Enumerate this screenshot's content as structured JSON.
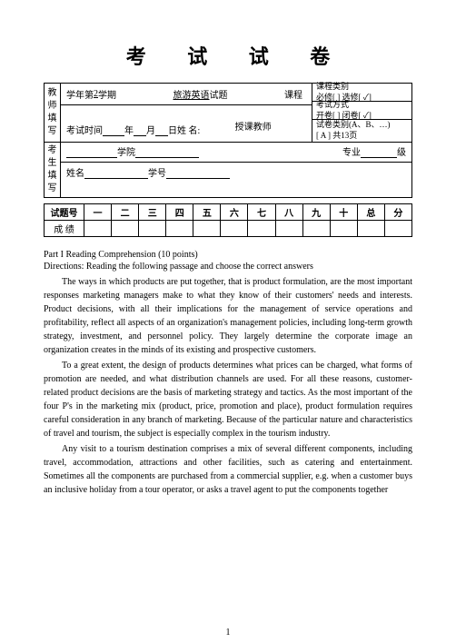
{
  "title": "考 试 试 卷",
  "teacher_side": [
    "教",
    "师",
    "填",
    "写"
  ],
  "student_side": [
    "考",
    "生",
    "填",
    "写"
  ],
  "row_a": {
    "semester_prefix": "学年第",
    "semester_num": "2",
    "semester_suffix": "学期",
    "subject": "旅游英语",
    "subject_after": " 试题",
    "course_label": "课程"
  },
  "row_b": {
    "exam_time_label": "考试时间",
    "year": "年",
    "month": "月",
    "day": "日",
    "name_label": " 姓 名:",
    "lecturer_label": "授课教师"
  },
  "opts": {
    "cat_label": "课程类别",
    "cat_line": "必修[  ] 选修[ ✓]",
    "mode_label": "考试方式",
    "mode_line": "开卷[  ] 闭卷[ ✓]",
    "type_label": "试卷类别(A、B、…)",
    "type_line": "[ A ]  共13页"
  },
  "student": {
    "college": "学院",
    "major": "专业",
    "grade": "级",
    "name": "姓名",
    "sno": "学号"
  },
  "score": {
    "row1_head": "试题号",
    "cols": [
      "一",
      "二",
      "三",
      "四",
      "五",
      "六",
      "七",
      "八",
      "九",
      "十",
      "总",
      "分"
    ],
    "row2_head": "成  绩"
  },
  "part_line": "Part I    Reading Comprehension (10 points)",
  "directions": "Directions: Reading the following passage and choose the correct answers",
  "p1": "The ways in which products are put together, that is product formulation, are the most important responses marketing managers make to what they know of their customers' needs and interests. Product decisions, with all their implications for the management of service operations and profitability, reflect all aspects of an organization's management policies, including long-term growth strategy, investment, and personnel policy. They largely determine the corporate image an organization creates in the minds of its existing and prospective customers.",
  "p2": "To a great extent, the design of products determines what prices can be charged, what forms of promotion are needed, and what distribution channels are used. For all these reasons, customer-related product decisions are the basis of marketing strategy and tactics. As the most important of the four P's in the marketing mix (product, price, promotion and place), product formulation requires careful consideration in any branch of marketing. Because of the particular nature and characteristics of travel and tourism, the subject is especially complex in the tourism industry.",
  "p3": "Any visit to a tourism destination comprises a mix of several different components, including travel, accommodation, attractions and other facilities, such as catering and entertainment. Sometimes all the components are purchased from a commercial supplier, e.g. when a customer buys an inclusive holiday from a tour operator, or asks a travel agent to put the components together",
  "page_num": "1"
}
